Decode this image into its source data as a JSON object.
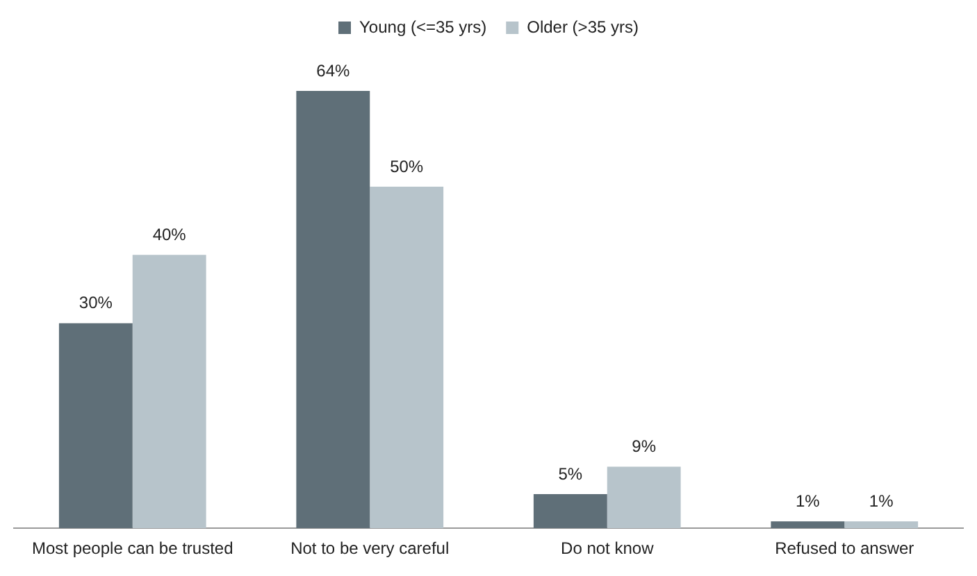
{
  "chart_data": {
    "type": "bar",
    "categories": [
      "Most people can be trusted",
      "Not to be very careful",
      "Do not know",
      "Refused to answer"
    ],
    "series": [
      {
        "name": "Young (<=35 yrs)",
        "color": "#5f6f78",
        "values": [
          30,
          64,
          5,
          1
        ],
        "value_labels": [
          "30%",
          "64%",
          "5%",
          "1%"
        ]
      },
      {
        "name": "Older (>35 yrs)",
        "color": "#b7c4cb",
        "values": [
          40,
          50,
          9,
          1
        ],
        "value_labels": [
          "40%",
          "50%",
          "9%",
          "1%"
        ]
      }
    ],
    "legend": "top",
    "grid": false
  }
}
